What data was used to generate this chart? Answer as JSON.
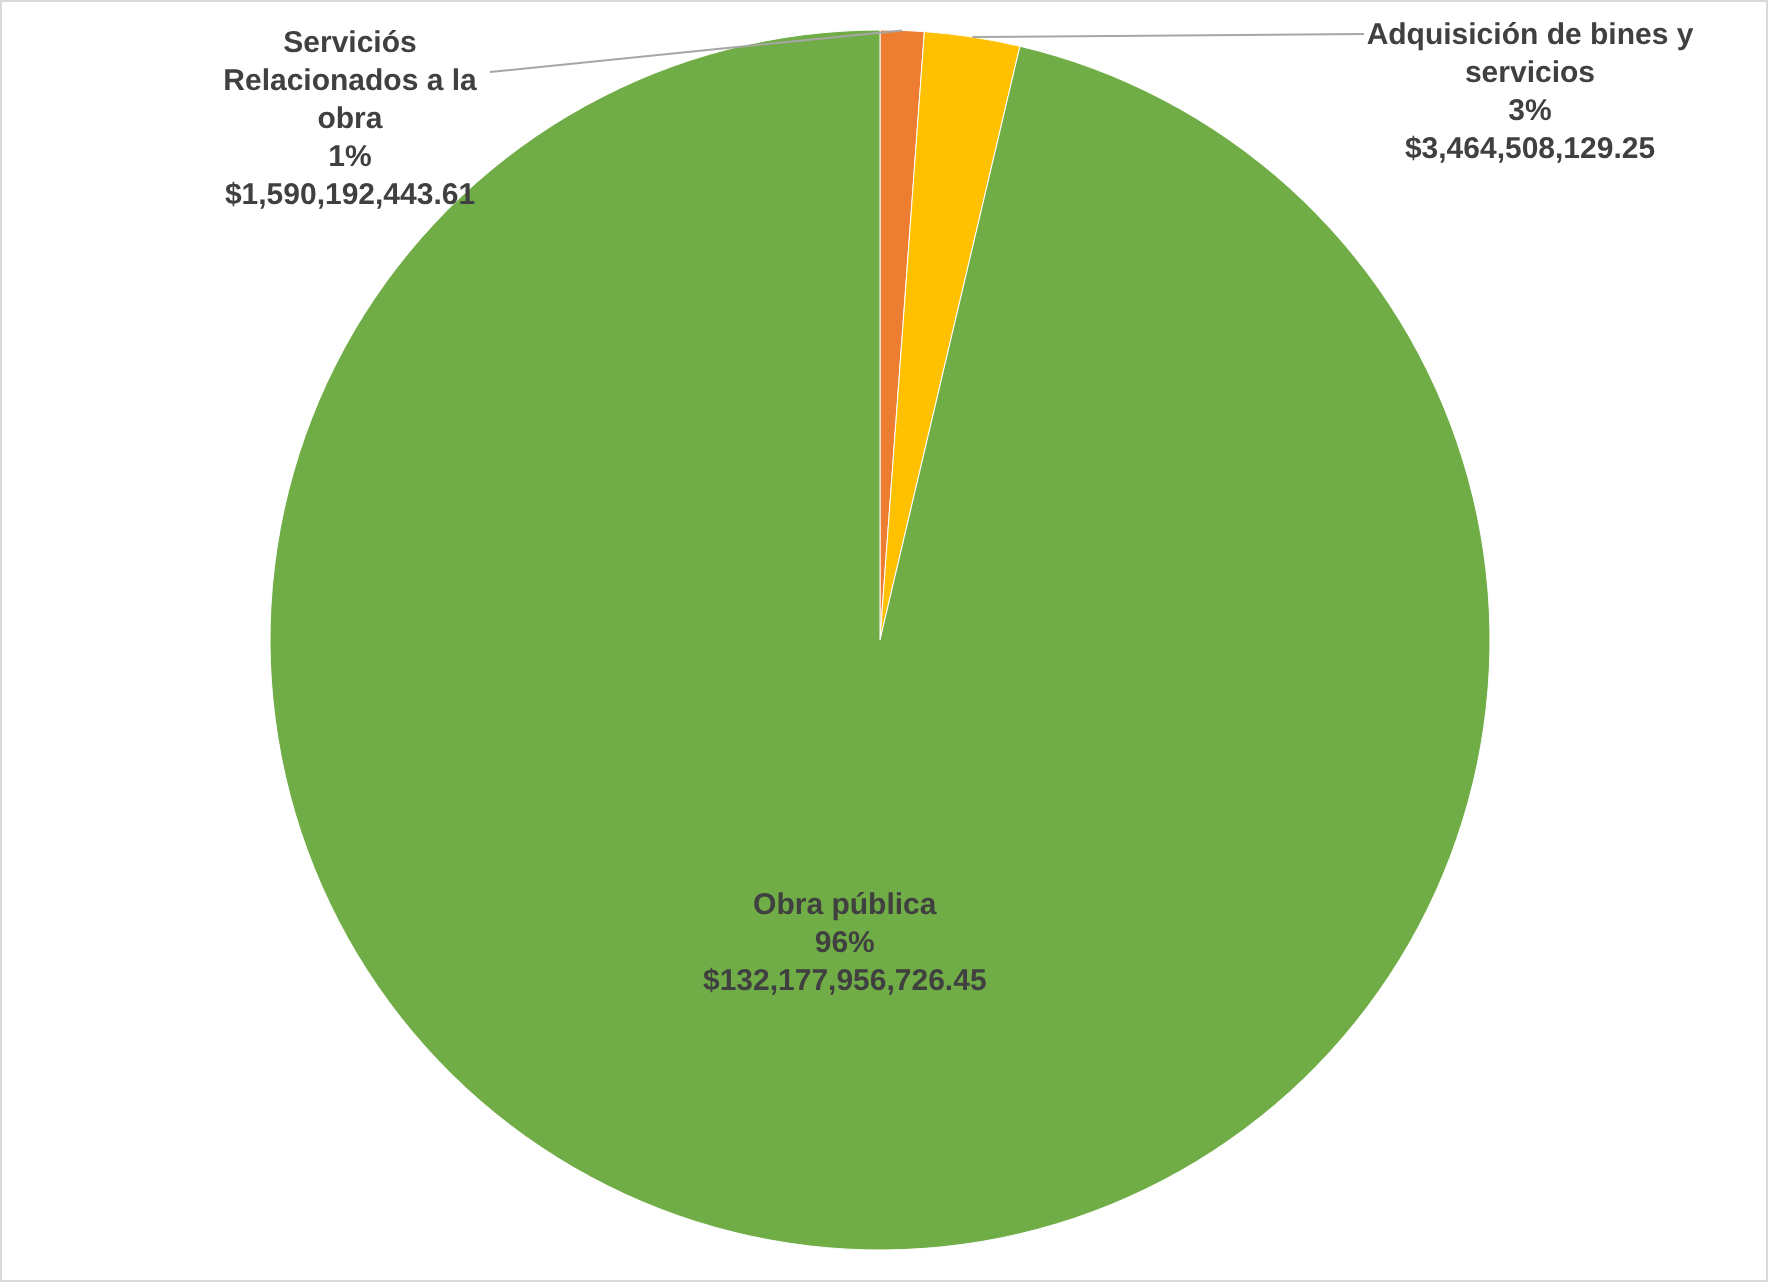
{
  "chart_data": {
    "type": "pie",
    "categories": [
      "Serviciós Relacionados a la obra",
      "Adquisición de bines y servicios",
      "Obra pública"
    ],
    "values": [
      1590192443.61,
      3464508129.25,
      132177956726.45
    ],
    "colors": [
      "#ed7d31",
      "#ffc000",
      "#70ad47"
    ],
    "value_labels": [
      "1%\n$1,590,192,443.61",
      "3%\n$3,464,508,129.25",
      "96%\n$132,177,956,726.45"
    ],
    "legend": false
  }
}
